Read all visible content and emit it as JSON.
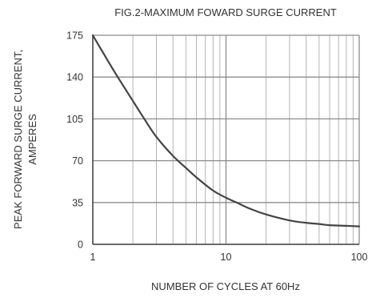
{
  "chart_data": {
    "type": "line",
    "title": "FIG.2-MAXIMUM FOWARD  SURGE CURRENT",
    "xlabel": "NUMBER OF CYCLES AT 60Hz",
    "ylabel_lines": [
      "PEAK FORWARD SURGE CURRENT,",
      "AMPERES"
    ],
    "x_scale": "log",
    "xlim": [
      1,
      100
    ],
    "ylim": [
      0,
      175
    ],
    "x_ticks": [
      1,
      10,
      100
    ],
    "x_tick_labels": [
      "1",
      "10",
      "100"
    ],
    "y_ticks": [
      0,
      35,
      70,
      105,
      140,
      175
    ],
    "y_tick_labels": [
      "0",
      "35",
      "70",
      "105",
      "140",
      "175"
    ],
    "grid": true,
    "colors": {
      "curve": "#444444",
      "grid": "#b3b3b3",
      "axis": "#444444"
    },
    "series": [
      {
        "x": [
          1,
          1.2,
          1.5,
          2,
          2.5,
          3,
          4,
          5,
          6,
          8,
          10,
          12,
          15,
          20,
          30,
          40,
          50,
          60,
          80,
          100
        ],
        "y": [
          175,
          160,
          142,
          120,
          103,
          90,
          74,
          64,
          56,
          45,
          39,
          35,
          30,
          25,
          20,
          18,
          17,
          16,
          15.5,
          15
        ]
      }
    ]
  }
}
